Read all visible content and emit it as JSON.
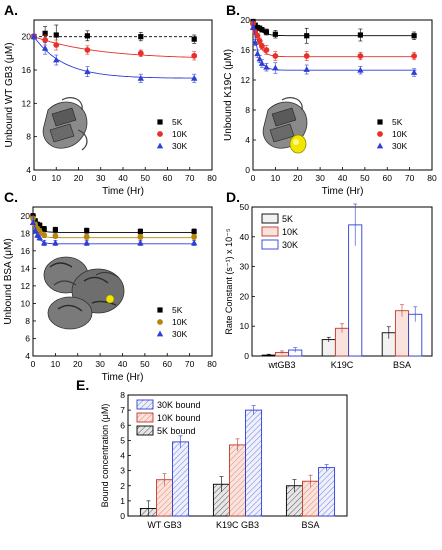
{
  "figure": {
    "panels": [
      "A.",
      "B.",
      "C.",
      "D.",
      "E."
    ]
  },
  "chart_data": [
    {
      "id": "A",
      "type": "scatter",
      "panel_label": "A.",
      "xlabel": "Time (Hr)",
      "ylabel": "Unbound WT GB3 (μM)",
      "xlim": [
        0,
        80
      ],
      "ylim": [
        4,
        22
      ],
      "xticks": [
        0,
        10,
        20,
        30,
        40,
        50,
        60,
        70,
        80
      ],
      "yticks": [
        4,
        8,
        12,
        16,
        20
      ],
      "legend_position": "bottom-right",
      "grid": false,
      "series": [
        {
          "name": "5K",
          "color": "#000000",
          "marker": "square",
          "x": [
            0,
            5,
            10,
            24,
            48,
            72
          ],
          "y": [
            20.0,
            20.4,
            20.2,
            20.1,
            20.0,
            19.7
          ],
          "err": [
            0.3,
            0.8,
            1.2,
            0.6,
            0.5,
            0.5
          ],
          "fit": {
            "kind": "flat",
            "start": 20.0,
            "plateau": 20.0,
            "k": 0.05,
            "dashed": true
          }
        },
        {
          "name": "10K",
          "color": "#e8302a",
          "marker": "circle",
          "x": [
            0,
            5,
            10,
            24,
            48,
            72
          ],
          "y": [
            20.0,
            19.6,
            19.0,
            18.4,
            18.0,
            17.7
          ],
          "err": [
            0.3,
            0.6,
            0.6,
            0.5,
            0.4,
            0.5
          ],
          "fit": {
            "kind": "exp",
            "start": 20.0,
            "plateau": 17.3,
            "k": 0.035,
            "dashed": false
          }
        },
        {
          "name": "30K",
          "color": "#2f3fd6",
          "marker": "triangle",
          "x": [
            0,
            5,
            10,
            24,
            48,
            72
          ],
          "y": [
            20.0,
            18.6,
            17.2,
            15.8,
            15.0,
            15.0
          ],
          "err": [
            0.3,
            0.7,
            0.6,
            0.6,
            0.5,
            0.5
          ],
          "fit": {
            "kind": "exp",
            "start": 20.0,
            "plateau": 15.0,
            "k": 0.075,
            "dashed": false
          }
        }
      ]
    },
    {
      "id": "B",
      "type": "scatter",
      "panel_label": "B.",
      "xlabel": "Time (Hr)",
      "ylabel": "Unbound K19C (μM)",
      "xlim": [
        0,
        80
      ],
      "ylim": [
        0,
        20
      ],
      "xticks": [
        0,
        10,
        20,
        30,
        40,
        50,
        60,
        70,
        80
      ],
      "yticks": [
        0,
        4,
        8,
        12,
        16,
        20
      ],
      "legend_position": "bottom-right",
      "grid": false,
      "series": [
        {
          "name": "5K",
          "color": "#000000",
          "marker": "square",
          "x": [
            0,
            1,
            2,
            3,
            4,
            6,
            10,
            24,
            48,
            72
          ],
          "y": [
            19.8,
            19.3,
            19.0,
            18.9,
            18.7,
            18.4,
            18.1,
            17.9,
            18.0,
            17.9
          ],
          "err": [
            0.3,
            0.3,
            0.3,
            0.3,
            0.3,
            0.4,
            0.5,
            1.0,
            0.8,
            0.5
          ],
          "fit": {
            "kind": "exp",
            "start": 20.0,
            "plateau": 17.9,
            "k": 0.35,
            "dashed": false
          }
        },
        {
          "name": "10K",
          "color": "#e8302a",
          "marker": "circle",
          "x": [
            0,
            1,
            2,
            3,
            4,
            6,
            10,
            24,
            48,
            72
          ],
          "y": [
            19.5,
            18.4,
            17.9,
            17.2,
            16.5,
            16.0,
            15.2,
            15.2,
            15.2,
            15.2
          ],
          "err": [
            0.3,
            0.3,
            0.3,
            0.4,
            0.4,
            0.6,
            0.6,
            0.6,
            0.5,
            0.5
          ],
          "fit": {
            "kind": "exp",
            "start": 20.0,
            "plateau": 15.1,
            "k": 0.4,
            "dashed": false
          }
        },
        {
          "name": "30K",
          "color": "#2f3fd6",
          "marker": "triangle",
          "x": [
            0,
            1,
            2,
            3,
            4,
            6,
            10,
            24,
            48,
            72
          ],
          "y": [
            19.0,
            17.0,
            15.5,
            14.8,
            14.2,
            13.7,
            13.6,
            13.4,
            13.3,
            13.0
          ],
          "err": [
            0.3,
            0.4,
            0.5,
            0.5,
            0.5,
            0.5,
            0.7,
            0.6,
            0.5,
            0.5
          ],
          "fit": {
            "kind": "exp",
            "start": 20.0,
            "plateau": 13.3,
            "k": 0.45,
            "dashed": false
          }
        }
      ]
    },
    {
      "id": "C",
      "type": "scatter",
      "panel_label": "C.",
      "xlabel": "Time (Hr)",
      "ylabel": "Unbound BSA (μM)",
      "xlim": [
        0,
        80
      ],
      "ylim": [
        4,
        21
      ],
      "xticks": [
        0,
        10,
        20,
        30,
        40,
        50,
        60,
        70,
        80
      ],
      "yticks": [
        4,
        6,
        8,
        10,
        12,
        14,
        16,
        18,
        20
      ],
      "legend_position": "bottom-right",
      "grid": false,
      "series": [
        {
          "name": "5K",
          "color": "#000000",
          "marker": "square",
          "x": [
            0,
            1,
            2,
            3,
            5,
            10,
            24,
            48,
            72
          ],
          "y": [
            20.0,
            19.4,
            19.0,
            18.9,
            18.5,
            18.4,
            18.3,
            18.2,
            18.2
          ],
          "err": [
            0.2,
            0.3,
            0.3,
            0.3,
            0.3,
            0.3,
            0.3,
            0.3,
            0.3
          ],
          "fit": {
            "kind": "exp",
            "start": 20.0,
            "plateau": 18.1,
            "k": 0.5,
            "dashed": false
          }
        },
        {
          "name": "10K",
          "color": "#b8860b",
          "marker": "circle",
          "x": [
            0,
            1,
            2,
            3,
            5,
            10,
            24,
            48,
            72
          ],
          "y": [
            19.7,
            19.0,
            18.5,
            18.2,
            17.8,
            17.7,
            17.6,
            17.6,
            17.6
          ],
          "err": [
            0.2,
            0.3,
            0.3,
            0.3,
            0.3,
            0.3,
            0.3,
            0.3,
            0.3
          ],
          "fit": {
            "kind": "exp",
            "start": 20.0,
            "plateau": 17.5,
            "k": 0.55,
            "dashed": false
          }
        },
        {
          "name": "30K",
          "color": "#2f3fd6",
          "marker": "triangle",
          "x": [
            0,
            1,
            2,
            3,
            5,
            10,
            24,
            48,
            72
          ],
          "y": [
            19.2,
            18.3,
            17.8,
            17.5,
            16.9,
            16.9,
            16.9,
            16.9,
            16.9
          ],
          "err": [
            0.2,
            0.3,
            0.3,
            0.3,
            0.3,
            0.3,
            0.3,
            0.3,
            0.3
          ],
          "fit": {
            "kind": "exp",
            "start": 20.0,
            "plateau": 16.8,
            "k": 0.6,
            "dashed": false
          }
        }
      ]
    },
    {
      "id": "D",
      "type": "bar",
      "panel_label": "D.",
      "xlabel": "",
      "ylabel": "Rate Constant (s⁻¹) x 10⁻⁵",
      "ylim": [
        0,
        50
      ],
      "yticks": [
        0,
        10,
        20,
        30,
        40,
        50
      ],
      "categories": [
        "wtGB3",
        "K19C",
        "BSA"
      ],
      "legend_position": "top-left",
      "grid": false,
      "series": [
        {
          "name": "5K",
          "color": "#000000",
          "fill": "#f2f2f2",
          "values": [
            0.3,
            5.5,
            7.8
          ],
          "err": [
            0.3,
            0.8,
            2.0
          ]
        },
        {
          "name": "10K",
          "color": "#c0392b",
          "fill": "#fbe3dd",
          "values": [
            1.2,
            9.3,
            15.2
          ],
          "err": [
            0.5,
            1.5,
            2.0
          ]
        },
        {
          "name": "30K",
          "color": "#2f3fd6",
          "fill": "#ffffff",
          "values": [
            2.0,
            44.0,
            14.0
          ],
          "err": [
            0.8,
            7.0,
            2.5
          ]
        }
      ]
    },
    {
      "id": "E",
      "type": "bar",
      "panel_label": "E.",
      "xlabel": "",
      "ylabel": "Bound concentration (μM)",
      "ylim": [
        0,
        8
      ],
      "yticks": [
        0,
        1,
        2,
        3,
        4,
        5,
        6,
        7,
        8
      ],
      "categories": [
        "WT GB3",
        "K19C GB3",
        "BSA"
      ],
      "legend_position": "top-left",
      "grid": false,
      "series": [
        {
          "name": "5K bound",
          "color": "#000000",
          "fill": "#e6e6e6",
          "values": [
            0.5,
            2.1,
            2.0
          ],
          "err": [
            0.5,
            0.5,
            0.4
          ]
        },
        {
          "name": "10K bound",
          "color": "#c0392b",
          "fill": "#fbe3dd",
          "values": [
            2.4,
            4.7,
            2.3
          ],
          "err": [
            0.4,
            0.4,
            0.4
          ]
        },
        {
          "name": "30K bound",
          "color": "#2f3fd6",
          "fill": "#e9ecfb",
          "values": [
            4.9,
            7.0,
            3.2
          ],
          "err": [
            0.4,
            0.3,
            0.2
          ]
        }
      ],
      "legend_order": [
        "30K bound",
        "10K bound",
        "5K bound"
      ]
    }
  ]
}
